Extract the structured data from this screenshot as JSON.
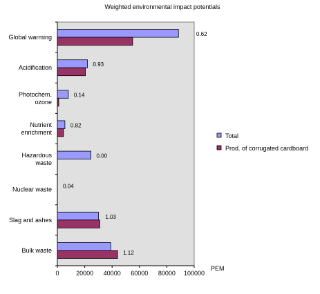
{
  "chart_data": {
    "type": "bar",
    "orientation": "horizontal",
    "title": "Weighted environmental impact potentials",
    "xlabel": "PEM",
    "ylabel": "",
    "xlim": [
      0,
      100000
    ],
    "xticks": [
      "0",
      "20000",
      "40000",
      "60000",
      "80000",
      "100000"
    ],
    "grid": false,
    "legend": "right",
    "categories": [
      [
        "Global warming"
      ],
      [
        "Acidification"
      ],
      [
        "Photochem.",
        "ozone"
      ],
      [
        "Nutrient",
        "enrichment"
      ],
      [
        "Hazardous",
        "waste"
      ],
      [
        "Nuclear waste"
      ],
      [
        "Slag and ashes"
      ],
      [
        "Bulk waste"
      ]
    ],
    "series": [
      {
        "name": "Total",
        "color": "#9999ff",
        "values": [
          88500,
          22000,
          8000,
          5500,
          24500,
          0,
          30000,
          39000
        ]
      },
      {
        "name": "Prod. of corrugated cardboard",
        "color": "#993366",
        "values": [
          55000,
          20500,
          1000,
          4500,
          0,
          0,
          31000,
          44000
        ]
      }
    ],
    "annotations": [
      "0.62",
      "0.93",
      "0.14",
      "0.82",
      "0.00",
      "0.04",
      "1.03",
      "1.12"
    ]
  }
}
